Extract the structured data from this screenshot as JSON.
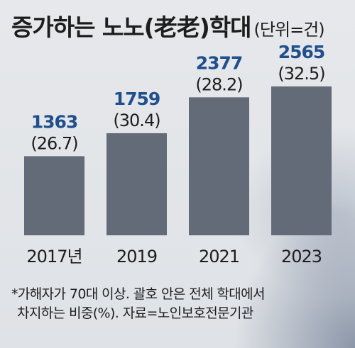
{
  "title": "증가하는 노노(老老)학대",
  "unit": "(단위=건)",
  "footnote": {
    "line1": "*가해자가 70대 이상. 괄호 안은 전체 학대에서",
    "line2": "차지하는 비중(%). 자료=노인보호전문기관"
  },
  "colors": {
    "bar": "#646b78",
    "value_label": "#1f4f8c",
    "text": "#1d1d1d"
  },
  "chart_data": {
    "type": "bar",
    "title": "증가하는 노노(老老)학대",
    "unit": "(단위=건)",
    "categories": [
      "2017년",
      "2019",
      "2021",
      "2023"
    ],
    "values": [
      1363,
      1759,
      2377,
      2565
    ],
    "percent_labels": [
      "(26.7)",
      "(30.4)",
      "(28.2)",
      "(32.5)"
    ],
    "percent_values": [
      26.7,
      30.4,
      28.2,
      32.5
    ],
    "ylim": [
      0,
      3000
    ],
    "grid": false,
    "legend": "none"
  }
}
